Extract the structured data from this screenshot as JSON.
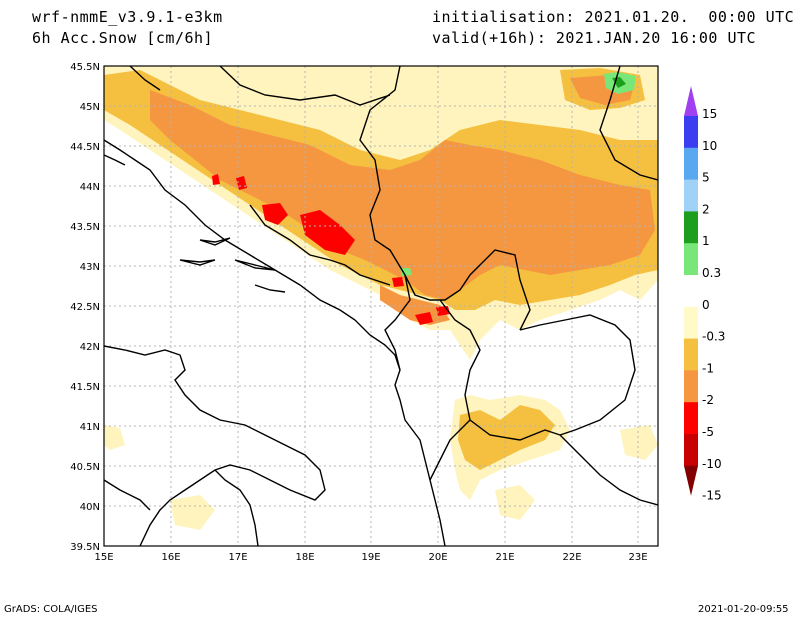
{
  "header": {
    "model": "wrf-nmmE_v3.9.1-e3km",
    "field": "6h Acc.Snow [cm/6h]",
    "init": "initialisation: 2021.01.20.  00:00 UTC",
    "valid": "valid(+16h): 2021.JAN.20 16:00 UTC"
  },
  "map": {
    "lat_labels": [
      "45.5N",
      "45N",
      "44.5N",
      "44N",
      "43.5N",
      "43N",
      "42.5N",
      "42N",
      "41.5N",
      "41N",
      "40.5N",
      "40N",
      "39.5N"
    ],
    "lon_labels": [
      "15E",
      "16E",
      "17E",
      "18E",
      "19E",
      "20E",
      "21E",
      "22E",
      "23E"
    ],
    "lat_range": [
      39.5,
      45.5
    ],
    "lon_range": [
      15,
      23.3
    ]
  },
  "colorbar": {
    "labels": [
      "15",
      "10",
      "5",
      "2",
      "1",
      "0.3",
      "0",
      "-0.3",
      "-1",
      "-2",
      "-5",
      "-10",
      "-15"
    ],
    "colors": [
      "#a040f0",
      "#3c3cf0",
      "#5aa8f0",
      "#a0d2f8",
      "#1e9e1e",
      "#78e678",
      "#ffffff",
      "#fffac8",
      "#f5c040",
      "#f59640",
      "#ff0000",
      "#c80000",
      "#820000"
    ]
  },
  "footer": {
    "left": "GrADS: COLA/IGES",
    "right": "2021-01-20-09:55"
  },
  "colors": {
    "light_snow": "#fff4be",
    "medium_snow": "#f5c040",
    "heavy_snow": "#f59640",
    "very_heavy_snow": "#ff0000",
    "green_snow": "#78e678"
  }
}
